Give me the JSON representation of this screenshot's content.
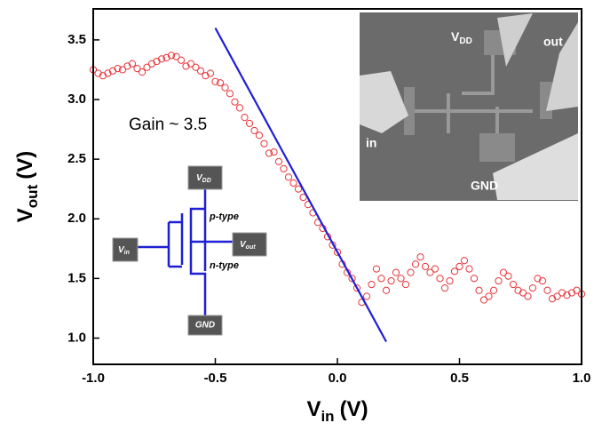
{
  "chart_data": {
    "type": "scatter",
    "x_label": {
      "text": "V",
      "sub": "in",
      "unit": "(V)"
    },
    "y_label": {
      "text": "V",
      "sub": "out",
      "unit": "(V)"
    },
    "annotation": "Gain ~ 3.5",
    "xlim": [
      -1.0,
      1.0
    ],
    "ylim": [
      0.78,
      3.76
    ],
    "xticks": [
      {
        "value": -1.0,
        "label": "-1.0"
      },
      {
        "value": -0.5,
        "label": "-0.5"
      },
      {
        "value": 0.0,
        "label": "0.0"
      },
      0.5,
      {
        "value": 1.0,
        "label": "1.0"
      }
    ],
    "yticks": [
      {
        "value": 1.0,
        "label": "1.0"
      },
      1.5,
      {
        "value": 2.0,
        "label": "2.0"
      },
      2.5,
      {
        "value": 3.0,
        "label": "3.0"
      },
      3.5
    ],
    "series": [
      {
        "kind": "scatter",
        "color": "#e8353a",
        "x": [
          -1.0,
          -0.98,
          -0.96,
          -0.94,
          -0.92,
          -0.9,
          -0.88,
          -0.86,
          -0.84,
          -0.82,
          -0.8,
          -0.78,
          -0.76,
          -0.74,
          -0.72,
          -0.7,
          -0.68,
          -0.66,
          -0.64,
          -0.62,
          -0.6,
          -0.58,
          -0.56,
          -0.54,
          -0.52,
          -0.5,
          -0.48,
          -0.46,
          -0.44,
          -0.42,
          -0.4,
          -0.38,
          -0.36,
          -0.34,
          -0.32,
          -0.3,
          -0.28,
          -0.26,
          -0.24,
          -0.22,
          -0.2,
          -0.18,
          -0.16,
          -0.14,
          -0.12,
          -0.1,
          -0.08,
          -0.06,
          -0.04,
          -0.02,
          0.0,
          0.02,
          0.04,
          0.06,
          0.08,
          0.1,
          0.12,
          0.14,
          0.16,
          0.18,
          0.2,
          0.22,
          0.24,
          0.26,
          0.28,
          0.3,
          0.32,
          0.34,
          0.36,
          0.38,
          0.4,
          0.42,
          0.44,
          0.46,
          0.48,
          0.5,
          0.52,
          0.54,
          0.56,
          0.58,
          0.6,
          0.62,
          0.64,
          0.66,
          0.68,
          0.7,
          0.72,
          0.74,
          0.76,
          0.78,
          0.8,
          0.82,
          0.84,
          0.86,
          0.88,
          0.9,
          0.92,
          0.94,
          0.96,
          0.98,
          1.0
        ],
        "values": [
          3.25,
          3.22,
          3.2,
          3.22,
          3.24,
          3.26,
          3.25,
          3.28,
          3.3,
          3.26,
          3.23,
          3.27,
          3.3,
          3.32,
          3.34,
          3.35,
          3.37,
          3.36,
          3.33,
          3.28,
          3.3,
          3.27,
          3.24,
          3.2,
          3.22,
          3.15,
          3.14,
          3.1,
          3.05,
          2.98,
          2.93,
          2.85,
          2.8,
          2.74,
          2.7,
          2.63,
          2.55,
          2.56,
          2.48,
          2.42,
          2.35,
          2.3,
          2.25,
          2.18,
          2.12,
          2.05,
          1.97,
          1.92,
          1.85,
          1.78,
          1.72,
          1.62,
          1.55,
          1.5,
          1.42,
          1.3,
          1.35,
          1.45,
          1.58,
          1.5,
          1.4,
          1.48,
          1.55,
          1.5,
          1.45,
          1.55,
          1.62,
          1.68,
          1.6,
          1.55,
          1.58,
          1.5,
          1.42,
          1.48,
          1.56,
          1.6,
          1.65,
          1.58,
          1.5,
          1.4,
          1.32,
          1.35,
          1.4,
          1.48,
          1.55,
          1.52,
          1.45,
          1.4,
          1.38,
          1.35,
          1.42,
          1.5,
          1.48,
          1.4,
          1.33,
          1.35,
          1.38,
          1.36,
          1.38,
          1.4,
          1.37
        ]
      },
      {
        "kind": "line",
        "color": "#1f1fd6",
        "x": [
          -0.5,
          0.2
        ],
        "values": [
          3.6,
          0.97
        ]
      }
    ]
  },
  "inset_image": {
    "vdd": {
      "text": "V",
      "sub": "DD"
    },
    "out": "out",
    "in": "in",
    "gnd": "GND"
  },
  "circuit": {
    "vdd": {
      "text": "V",
      "sub": "DD"
    },
    "vin": {
      "text": "V",
      "sub": "in"
    },
    "vout": {
      "text": "V",
      "sub": "out"
    },
    "gnd": "GND",
    "p_type": "p-type",
    "n_type": "n-type"
  }
}
